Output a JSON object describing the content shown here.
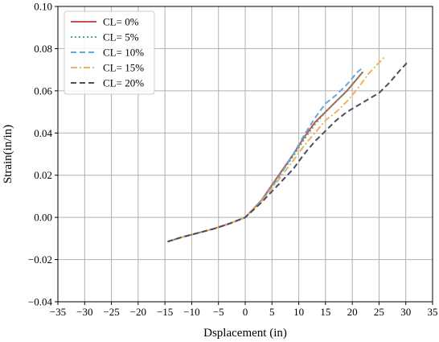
{
  "chart_data": {
    "type": "line",
    "title": "",
    "xlabel": "Dsplacement (in)",
    "ylabel": "Strain(in/in)",
    "xlim": [
      -35,
      35
    ],
    "ylim": [
      -0.04,
      0.1
    ],
    "xticks": [
      -35,
      -30,
      -25,
      -20,
      -15,
      -10,
      -5,
      0,
      5,
      10,
      15,
      20,
      25,
      30,
      35
    ],
    "xtick_labels": [
      "−35",
      "−30",
      "−25",
      "−20",
      "−15",
      "−10",
      "−5",
      "0",
      "5",
      "10",
      "15",
      "20",
      "25",
      "30",
      "35"
    ],
    "yticks": [
      -0.04,
      -0.02,
      0.0,
      0.02,
      0.04,
      0.06,
      0.08,
      0.1
    ],
    "ytick_labels": [
      "−0.04",
      "−0.02",
      "0.00",
      "0.02",
      "0.04",
      "0.06",
      "0.08",
      "0.10"
    ],
    "grid": true,
    "legend_position": "top-left",
    "series": [
      {
        "name": "CL= 0%",
        "color": "#c44e52",
        "dash": "solid",
        "x": [
          -14.5,
          -12,
          -9,
          -6,
          -3,
          0,
          3,
          6,
          9,
          11,
          13,
          15,
          17,
          19,
          21,
          22
        ],
        "y": [
          -0.0115,
          -0.0095,
          -0.0075,
          -0.0055,
          -0.003,
          0.0,
          0.008,
          0.019,
          0.03,
          0.038,
          0.045,
          0.05,
          0.055,
          0.06,
          0.066,
          0.069
        ]
      },
      {
        "name": "CL= 5%",
        "color": "#55a868",
        "dash": "dotted",
        "x": [
          -14.5,
          -12,
          -9,
          -6,
          -3,
          0,
          3,
          6,
          9,
          11,
          13,
          15,
          17,
          19,
          21,
          22
        ],
        "y": [
          -0.0115,
          -0.0095,
          -0.0075,
          -0.0055,
          -0.003,
          0.0,
          0.0078,
          0.0185,
          0.029,
          0.037,
          0.044,
          0.05,
          0.055,
          0.06,
          0.066,
          0.069
        ]
      },
      {
        "name": "CL= 10%",
        "color": "#64a9d9",
        "dash": "dashed",
        "x": [
          -14.5,
          -12,
          -9,
          -6,
          -3,
          0,
          3,
          6,
          9,
          11,
          13,
          15,
          17,
          19,
          21,
          22
        ],
        "y": [
          -0.0115,
          -0.0095,
          -0.0075,
          -0.0055,
          -0.003,
          0.0,
          0.0078,
          0.018,
          0.03,
          0.039,
          0.047,
          0.054,
          0.058,
          0.063,
          0.069,
          0.071
        ]
      },
      {
        "name": "CL= 15%",
        "color": "#f0b060",
        "dash": "dashdot",
        "x": [
          -14.5,
          -12,
          -9,
          -6,
          -3,
          0,
          3,
          6,
          9,
          11,
          13,
          15,
          17,
          19,
          21,
          23,
          24.5,
          26
        ],
        "y": [
          -0.0115,
          -0.0095,
          -0.0075,
          -0.0055,
          -0.003,
          0.0,
          0.0075,
          0.017,
          0.027,
          0.034,
          0.04,
          0.046,
          0.05,
          0.055,
          0.061,
          0.068,
          0.072,
          0.076
        ]
      },
      {
        "name": "CL= 20%",
        "color": "#4c4c63",
        "dash": "dashed",
        "x": [
          -14.5,
          -12,
          -9,
          -6,
          -3,
          0,
          3,
          6,
          9,
          11,
          13,
          15,
          17,
          19,
          21,
          23,
          25,
          27,
          29,
          30.5
        ],
        "y": [
          -0.0115,
          -0.0095,
          -0.0075,
          -0.0055,
          -0.003,
          0.0,
          0.007,
          0.015,
          0.023,
          0.03,
          0.036,
          0.041,
          0.046,
          0.05,
          0.053,
          0.056,
          0.059,
          0.064,
          0.07,
          0.074
        ]
      }
    ]
  }
}
